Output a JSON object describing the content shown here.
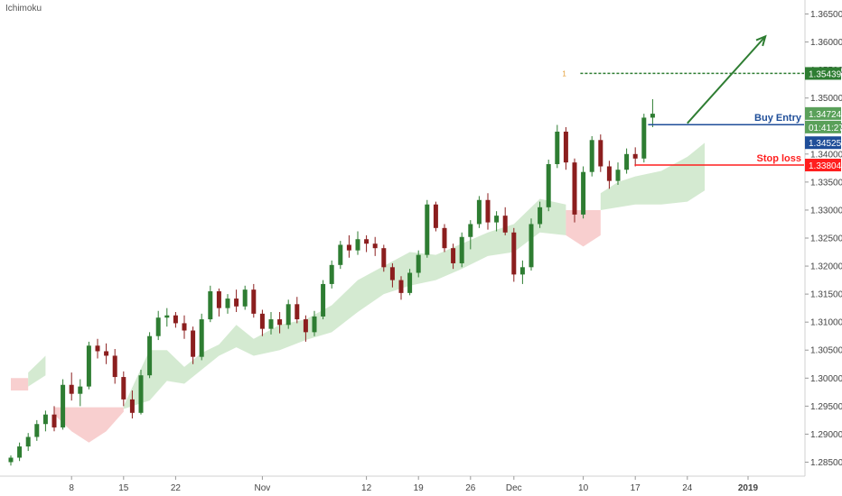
{
  "indicator_label": "Ichimoku",
  "colors": {
    "up": "#2e7d32",
    "down": "#8b1e1e",
    "cloud_bull": "#cfe8cc",
    "cloud_bear": "#f7caca",
    "buy_entry": "#1f4e99",
    "stop_loss": "#ff1f1f",
    "target": "#2e7d32",
    "price_badge": "#1f4e99",
    "last_badge": "#5aa05a"
  },
  "chart_data": {
    "type": "candlestick",
    "ylim": [
      1.2825,
      1.3675
    ],
    "y_ticks": [
      "1.36500",
      "1.36000",
      "1.35500",
      "1.35000",
      "1.34500",
      "1.34000",
      "1.33500",
      "1.33000",
      "1.32500",
      "1.32000",
      "1.31500",
      "1.31000",
      "1.30500",
      "1.30000",
      "1.29500",
      "1.29000",
      "1.28500"
    ],
    "x_ticks": [
      {
        "label": "8",
        "index": 7
      },
      {
        "label": "15",
        "index": 13
      },
      {
        "label": "22",
        "index": 19
      },
      {
        "label": "Nov",
        "index": 29
      },
      {
        "label": "12",
        "index": 41
      },
      {
        "label": "19",
        "index": 47
      },
      {
        "label": "26",
        "index": 53
      },
      {
        "label": "Dec",
        "index": 58
      },
      {
        "label": "10",
        "index": 66
      },
      {
        "label": "17",
        "index": 72
      },
      {
        "label": "24",
        "index": 78
      },
      {
        "label": "2019",
        "index": 85
      }
    ],
    "candles": [
      [
        1.285,
        1.2862,
        1.2844,
        1.2858
      ],
      [
        1.2858,
        1.2885,
        1.2852,
        1.2878
      ],
      [
        1.2878,
        1.2902,
        1.287,
        1.2895
      ],
      [
        1.2895,
        1.2925,
        1.2888,
        1.2918
      ],
      [
        1.2918,
        1.2942,
        1.2905,
        1.2935
      ],
      [
        1.2935,
        1.295,
        1.2905,
        1.2912
      ],
      [
        1.2912,
        1.2998,
        1.2908,
        1.2988
      ],
      [
        1.2988,
        1.301,
        1.296,
        1.2972
      ],
      [
        1.2972,
        1.2998,
        1.295,
        1.2985
      ],
      [
        1.2985,
        1.3065,
        1.298,
        1.3058
      ],
      [
        1.3058,
        1.307,
        1.3035,
        1.3048
      ],
      [
        1.3048,
        1.3062,
        1.3025,
        1.304
      ],
      [
        1.304,
        1.3052,
        1.299,
        1.3002
      ],
      [
        1.3002,
        1.3012,
        1.295,
        1.2962
      ],
      [
        1.2962,
        1.2978,
        1.2928,
        1.2938
      ],
      [
        1.2938,
        1.3015,
        1.2935,
        1.3005
      ],
      [
        1.3005,
        1.3082,
        1.3,
        1.3075
      ],
      [
        1.3075,
        1.312,
        1.3068,
        1.3108
      ],
      [
        1.3108,
        1.3125,
        1.3092,
        1.3112
      ],
      [
        1.3112,
        1.3118,
        1.309,
        1.3098
      ],
      [
        1.3098,
        1.3112,
        1.307,
        1.3085
      ],
      [
        1.3085,
        1.3092,
        1.3025,
        1.3038
      ],
      [
        1.3038,
        1.3115,
        1.3032,
        1.3105
      ],
      [
        1.3105,
        1.3165,
        1.31,
        1.3155
      ],
      [
        1.3155,
        1.316,
        1.311,
        1.3125
      ],
      [
        1.3125,
        1.315,
        1.3115,
        1.3142
      ],
      [
        1.3142,
        1.3158,
        1.3118,
        1.3128
      ],
      [
        1.3128,
        1.3165,
        1.3122,
        1.3158
      ],
      [
        1.3158,
        1.3168,
        1.3108,
        1.3115
      ],
      [
        1.3115,
        1.3122,
        1.3075,
        1.3088
      ],
      [
        1.3088,
        1.3118,
        1.3078,
        1.3105
      ],
      [
        1.3105,
        1.3118,
        1.308,
        1.3095
      ],
      [
        1.3095,
        1.314,
        1.3088,
        1.3132
      ],
      [
        1.3132,
        1.3145,
        1.3098,
        1.3105
      ],
      [
        1.3105,
        1.3112,
        1.3065,
        1.3082
      ],
      [
        1.3082,
        1.312,
        1.3075,
        1.311
      ],
      [
        1.311,
        1.3175,
        1.3105,
        1.3168
      ],
      [
        1.3168,
        1.321,
        1.316,
        1.3202
      ],
      [
        1.3202,
        1.3245,
        1.3195,
        1.3238
      ],
      [
        1.3238,
        1.3255,
        1.3215,
        1.3228
      ],
      [
        1.3228,
        1.3262,
        1.322,
        1.3248
      ],
      [
        1.3248,
        1.3255,
        1.3225,
        1.324
      ],
      [
        1.324,
        1.3252,
        1.3218,
        1.3232
      ],
      [
        1.3232,
        1.3238,
        1.319,
        1.3198
      ],
      [
        1.3198,
        1.3205,
        1.3162,
        1.3175
      ],
      [
        1.3175,
        1.3182,
        1.314,
        1.3152
      ],
      [
        1.3152,
        1.3195,
        1.3148,
        1.3188
      ],
      [
        1.3188,
        1.3228,
        1.318,
        1.322
      ],
      [
        1.322,
        1.3318,
        1.3215,
        1.331
      ],
      [
        1.331,
        1.3315,
        1.3262,
        1.3268
      ],
      [
        1.3268,
        1.3275,
        1.3225,
        1.3232
      ],
      [
        1.3232,
        1.324,
        1.3195,
        1.3205
      ],
      [
        1.3205,
        1.326,
        1.3198,
        1.3252
      ],
      [
        1.3252,
        1.3282,
        1.323,
        1.3275
      ],
      [
        1.3275,
        1.3325,
        1.3268,
        1.3318
      ],
      [
        1.3318,
        1.333,
        1.3265,
        1.3278
      ],
      [
        1.3278,
        1.3298,
        1.3262,
        1.329
      ],
      [
        1.329,
        1.3305,
        1.3255,
        1.326
      ],
      [
        1.326,
        1.3268,
        1.3172,
        1.3185
      ],
      [
        1.3185,
        1.321,
        1.3168,
        1.3198
      ],
      [
        1.3198,
        1.3285,
        1.3192,
        1.3275
      ],
      [
        1.3275,
        1.3315,
        1.3268,
        1.3305
      ],
      [
        1.3305,
        1.339,
        1.3298,
        1.3382
      ],
      [
        1.3382,
        1.3452,
        1.3375,
        1.344
      ],
      [
        1.344,
        1.3448,
        1.3372,
        1.3385
      ],
      [
        1.3385,
        1.3392,
        1.3278,
        1.3292
      ],
      [
        1.3292,
        1.3378,
        1.3285,
        1.3368
      ],
      [
        1.3368,
        1.3432,
        1.336,
        1.3425
      ],
      [
        1.3425,
        1.3435,
        1.3368,
        1.3378
      ],
      [
        1.3378,
        1.3388,
        1.3338,
        1.3352
      ],
      [
        1.3352,
        1.3385,
        1.3345,
        1.3372
      ],
      [
        1.3372,
        1.341,
        1.3365,
        1.34
      ],
      [
        1.34,
        1.3412,
        1.3378,
        1.3392
      ],
      [
        1.3392,
        1.3472,
        1.3385,
        1.3465
      ],
      [
        1.3465,
        1.3498,
        1.3448,
        1.3472
      ]
    ],
    "cloud_segments": [
      {
        "kind": "bear",
        "points": [
          [
            0,
            1.3,
            1.2978
          ],
          [
            2,
            1.3,
            1.2978
          ]
        ]
      },
      {
        "kind": "bull",
        "points": [
          [
            2,
            1.301,
            1.2985
          ],
          [
            4,
            1.304,
            1.3005
          ]
        ]
      },
      {
        "kind": "bear",
        "points": [
          [
            5,
            1.2948,
            1.2935
          ],
          [
            7,
            1.2948,
            1.2905
          ],
          [
            9,
            1.2948,
            1.2885
          ],
          [
            11,
            1.2948,
            1.2905
          ],
          [
            13,
            1.2948,
            1.294
          ]
        ]
      },
      {
        "kind": "bull",
        "points": [
          [
            13,
            1.295,
            1.2945
          ],
          [
            16,
            1.305,
            1.296
          ],
          [
            18,
            1.305,
            1.2995
          ],
          [
            20,
            1.302,
            1.299
          ],
          [
            22,
            1.3045,
            1.3015
          ],
          [
            24,
            1.306,
            1.304
          ],
          [
            26,
            1.3095,
            1.3055
          ],
          [
            28,
            1.307,
            1.304
          ],
          [
            31,
            1.3095,
            1.305
          ],
          [
            34,
            1.3105,
            1.3068
          ],
          [
            37,
            1.313,
            1.3082
          ],
          [
            40,
            1.3175,
            1.3118
          ],
          [
            43,
            1.32,
            1.315
          ],
          [
            46,
            1.3225,
            1.3165
          ],
          [
            49,
            1.322,
            1.3175
          ],
          [
            52,
            1.324,
            1.3195
          ],
          [
            55,
            1.326,
            1.3218
          ],
          [
            58,
            1.3275,
            1.3225
          ],
          [
            61,
            1.332,
            1.326
          ],
          [
            64,
            1.331,
            1.3255
          ]
        ]
      },
      {
        "kind": "bear",
        "points": [
          [
            64,
            1.33,
            1.3255
          ],
          [
            66,
            1.33,
            1.3235
          ],
          [
            68,
            1.33,
            1.3255
          ]
        ]
      },
      {
        "kind": "bull",
        "points": [
          [
            68,
            1.333,
            1.33
          ],
          [
            70,
            1.335,
            1.3305
          ],
          [
            72,
            1.336,
            1.331
          ],
          [
            75,
            1.337,
            1.331
          ],
          [
            78,
            1.3395,
            1.3315
          ],
          [
            80,
            1.342,
            1.3335
          ]
        ]
      }
    ],
    "levels": {
      "target": {
        "value": 1.35439,
        "label": "1.35439",
        "fib_label": "1"
      },
      "buy_entry": {
        "value": 1.34525,
        "label": "Buy Entry",
        "price": "1.34525"
      },
      "stop_loss": {
        "value": 1.33804,
        "label": "Stop loss",
        "price": "1.33804"
      },
      "last_price": {
        "value": 1.34724,
        "label": "1.34724",
        "countdown": "01:41:27"
      }
    },
    "arrow": {
      "from": [
        78,
        1.3455
      ],
      "to": [
        87,
        1.361
      ]
    }
  }
}
